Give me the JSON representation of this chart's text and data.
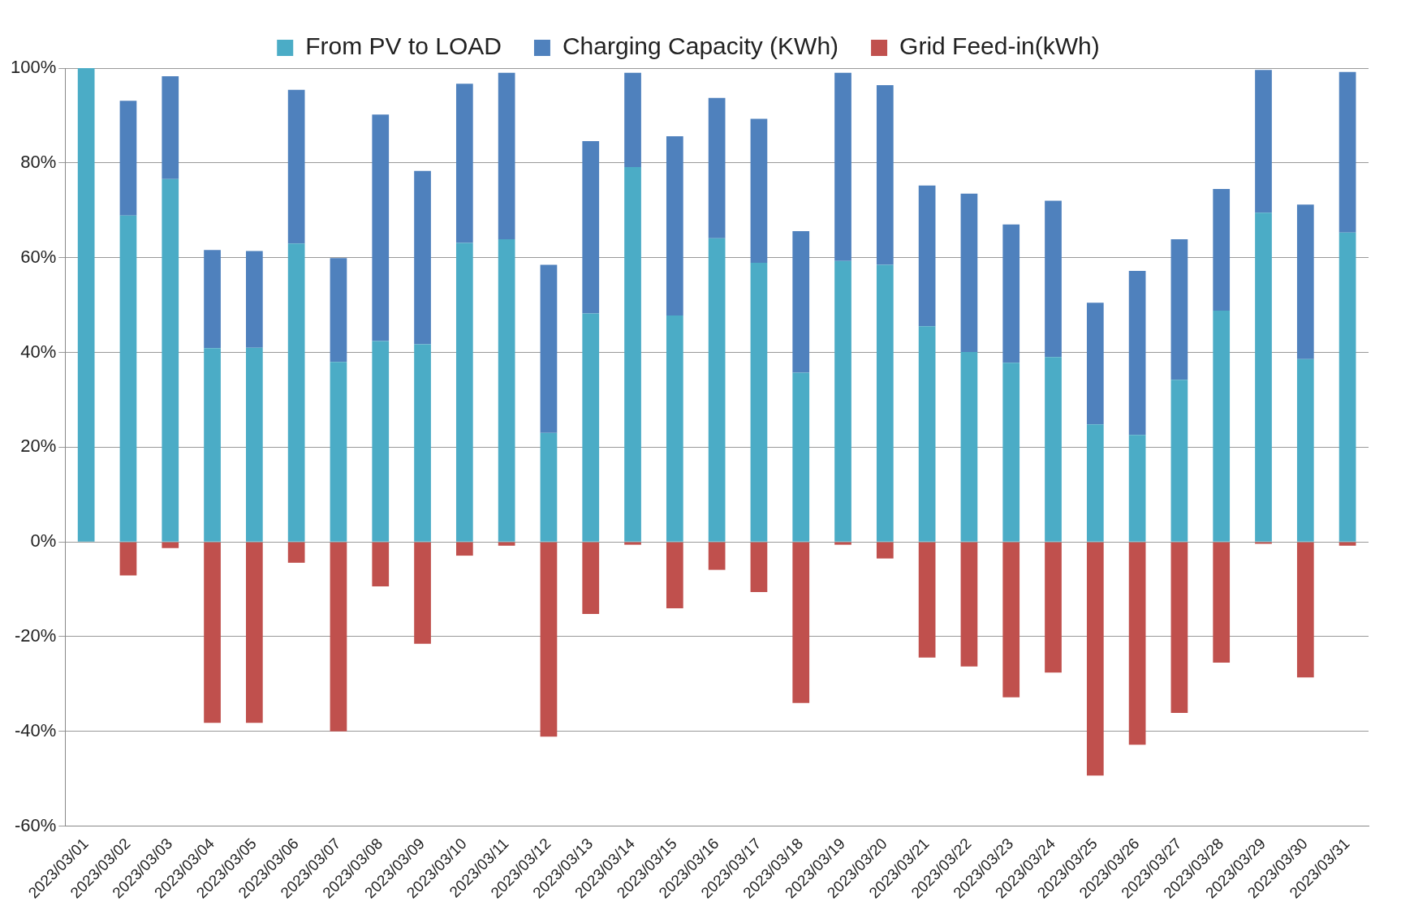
{
  "chart_data": {
    "type": "bar",
    "stacked": true,
    "grid": "y",
    "legend": "top",
    "categories": [
      "2023/03/01",
      "2023/03/02",
      "2023/03/03",
      "2023/03/04",
      "2023/03/05",
      "2023/03/06",
      "2023/03/07",
      "2023/03/08",
      "2023/03/09",
      "2023/03/10",
      "2023/03/11",
      "2023/03/12",
      "2023/03/13",
      "2023/03/14",
      "2023/03/15",
      "2023/03/16",
      "2023/03/17",
      "2023/03/18",
      "2023/03/19",
      "2023/03/20",
      "2023/03/21",
      "2023/03/22",
      "2023/03/23",
      "2023/03/24",
      "2023/03/25",
      "2023/03/26",
      "2023/03/27",
      "2023/03/28",
      "2023/03/29",
      "2023/03/30",
      "2023/03/31"
    ],
    "series": [
      {
        "name": "From PV to LOAD",
        "color": "#4bacc6",
        "values": [
          100,
          68.9,
          76.6,
          40.9,
          41,
          63,
          38,
          42.4,
          41.7,
          63.1,
          63.9,
          23,
          48.2,
          79.1,
          47.8,
          64.1,
          58.9,
          35.7,
          59.3,
          58.5,
          45.5,
          40.1,
          37.8,
          39,
          24.8,
          22.6,
          34.2,
          48.8,
          69.5,
          38.6,
          65.3
        ]
      },
      {
        "name": "Charging Capacity (KWh)",
        "color": "#4f81bd",
        "values": [
          0,
          24.2,
          21.7,
          20.7,
          20.4,
          32.4,
          21.9,
          47.8,
          36.6,
          33.6,
          35.1,
          35.5,
          36.4,
          19.9,
          37.8,
          29.6,
          30.4,
          29.9,
          39.7,
          37.9,
          29.7,
          33.4,
          29.2,
          33,
          25.7,
          34.6,
          29.7,
          25.7,
          30.1,
          32.6,
          33.9
        ]
      },
      {
        "name": "Grid Feed-in(kWh)",
        "color": "#c0504d",
        "values": [
          0,
          -7.1,
          -1.3,
          -38.2,
          -38.2,
          -4.4,
          -40,
          -9.4,
          -21.5,
          -2.9,
          -0.8,
          -41.1,
          -15.2,
          -0.6,
          -14,
          -5.9,
          -10.6,
          -34,
          -0.6,
          -3.5,
          -24.4,
          -26.3,
          -32.8,
          -27.6,
          -49.3,
          -42.8,
          -36.1,
          -25.5,
          -0.4,
          -28.6,
          -0.8
        ]
      }
    ],
    "ylim": [
      -60,
      100
    ],
    "yticks": [
      {
        "value": -60,
        "label": "-60%"
      },
      {
        "value": -40,
        "label": "-40%"
      },
      {
        "value": -20,
        "label": "-20%"
      },
      {
        "value": 0,
        "label": "0%"
      },
      {
        "value": 20,
        "label": "20%"
      },
      {
        "value": 40,
        "label": "40%"
      },
      {
        "value": 60,
        "label": "60%"
      },
      {
        "value": 80,
        "label": "80%"
      },
      {
        "value": 100,
        "label": "100%"
      }
    ]
  }
}
